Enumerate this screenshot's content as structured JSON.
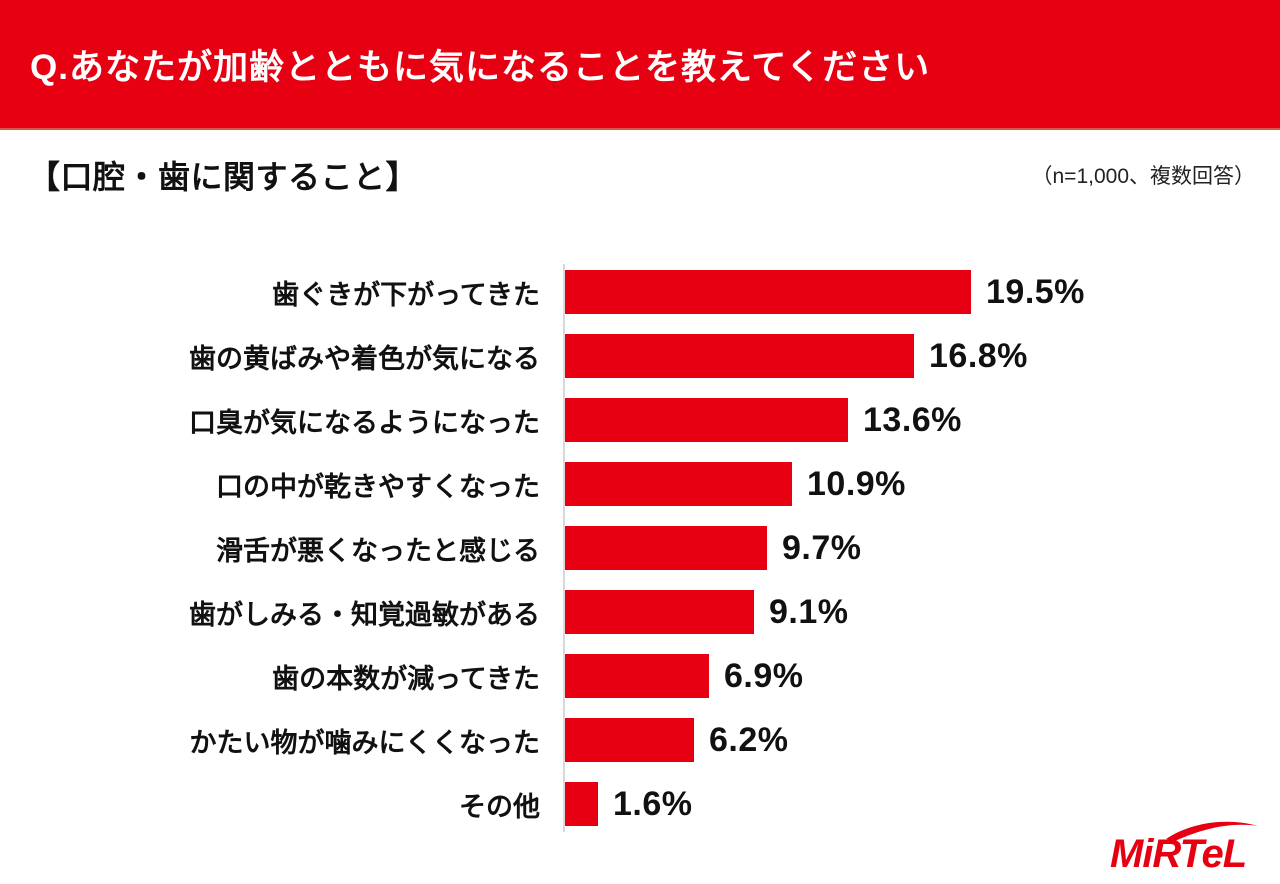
{
  "header": {
    "title": "Q.あなたが加齢とともに気になることを教えてください"
  },
  "section": {
    "title": "【口腔・歯に関すること】",
    "note": "（n=1,000、複数回答）"
  },
  "logo": {
    "text": "MiRTeL"
  },
  "colors": {
    "accent_red": "#e60012",
    "bar_red": "#e60012",
    "axis_gray": "#d9d9d9",
    "text": "#111111"
  },
  "chart_data": {
    "type": "bar",
    "orientation": "horizontal",
    "title": "Q.あなたが加齢とともに気になることを教えてください",
    "subtitle": "【口腔・歯に関すること】",
    "note": "（n=1,000、複数回答）",
    "categories": [
      "歯ぐきが下がってきた",
      "歯の黄ばみや着色が気になる",
      "口臭が気になるようになった",
      "口の中が乾きやすくなった",
      "滑舌が悪くなったと感じる",
      "歯がしみる・知覚過敏がある",
      "歯の本数が減ってきた",
      "かたい物が噛みにくくなった",
      "その他"
    ],
    "values": [
      19.5,
      16.8,
      13.6,
      10.9,
      9.7,
      9.1,
      6.9,
      6.2,
      1.6
    ],
    "value_labels": [
      "19.5%",
      "16.8%",
      "13.6%",
      "10.9%",
      "9.7%",
      "9.1%",
      "6.9%",
      "6.2%",
      "1.6%"
    ],
    "xlim": [
      0,
      20
    ],
    "grid": false,
    "legend": false,
    "bar_color": "#e60012",
    "value_label_position": "right-of-bar"
  }
}
